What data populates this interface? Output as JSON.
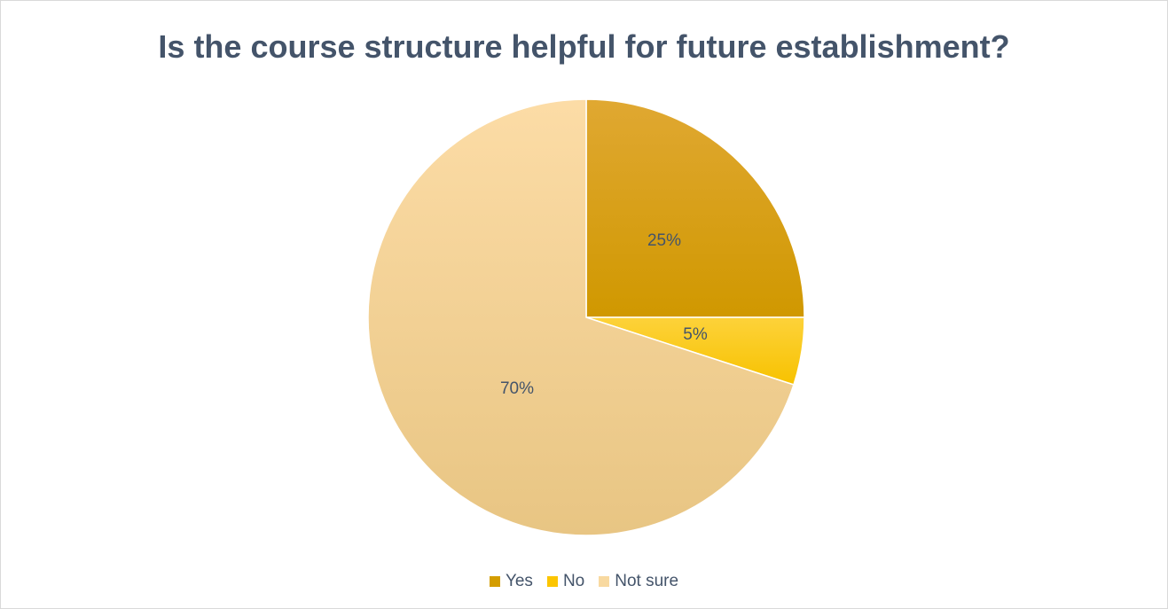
{
  "chart_data": {
    "type": "pie",
    "title": "Is the course structure helpful for future establishment?",
    "categories": [
      "Yes",
      "No",
      "Not sure"
    ],
    "values": [
      25,
      5,
      70
    ],
    "data_labels": [
      "25%",
      "5%",
      "70%"
    ],
    "colors": [
      "#d49d00",
      "#fcc500",
      "#f8d9a0"
    ],
    "legend_position": "bottom"
  }
}
